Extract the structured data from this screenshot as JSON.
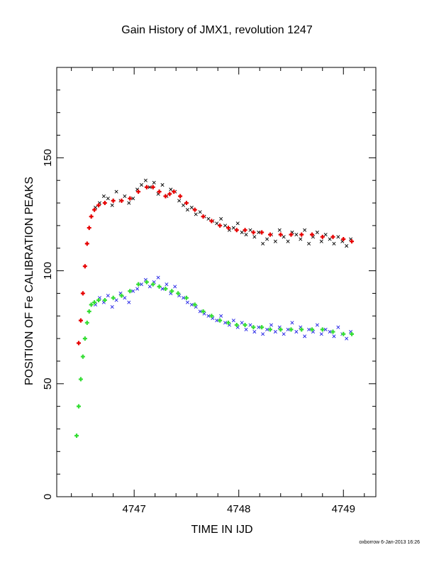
{
  "chart_data": {
    "type": "scatter",
    "title": "Gain History of JMX1, revolution 1247",
    "xlabel": "TIME IN IJD",
    "ylabel": "POSITION OF Fe CALIBRATION PEAKS",
    "xlim": [
      4746.26,
      4749.31
    ],
    "ylim": [
      0,
      190
    ],
    "xticks": [
      4747,
      4748,
      4749
    ],
    "yticks": [
      0,
      50,
      100,
      150
    ],
    "grid": false,
    "series": [
      {
        "color": "#000000",
        "marker": "x",
        "x": [
          4746.63,
          4746.67,
          4746.71,
          4746.75,
          4746.79,
          4746.83,
          4746.87,
          4746.91,
          4746.95,
          4746.99,
          4747.03,
          4747.07,
          4747.11,
          4747.15,
          4747.19,
          4747.23,
          4747.27,
          4747.31,
          4747.35,
          4747.39,
          4747.43,
          4747.47,
          4747.51,
          4747.55,
          4747.59,
          4747.63,
          4747.67,
          4747.71,
          4747.75,
          4747.79,
          4747.83,
          4747.87,
          4747.91,
          4747.95,
          4747.99,
          4748.03,
          4748.07,
          4748.11,
          4748.15,
          4748.19,
          4748.23,
          4748.27,
          4748.31,
          4748.35,
          4748.39,
          4748.43,
          4748.47,
          4748.51,
          4748.55,
          4748.59,
          4748.63,
          4748.67,
          4748.71,
          4748.75,
          4748.79,
          4748.83,
          4748.87,
          4748.91,
          4748.95,
          4748.99,
          4749.03,
          4749.07
        ],
        "y": [
          128,
          130,
          133,
          132,
          129,
          135,
          131,
          133,
          130,
          132,
          136,
          138,
          140,
          137,
          139,
          134,
          138,
          133,
          136,
          135,
          131,
          129,
          127,
          128,
          125,
          126,
          124,
          123,
          122,
          121,
          123,
          120,
          118,
          119,
          121,
          117,
          116,
          118,
          115,
          117,
          112,
          114,
          116,
          113,
          118,
          115,
          113,
          117,
          116,
          114,
          118,
          112,
          115,
          117,
          113,
          116,
          114,
          112,
          115,
          113,
          111,
          114
        ]
      },
      {
        "color": "#1f1fe6",
        "marker": "x",
        "x": [
          4746.63,
          4746.67,
          4746.71,
          4746.75,
          4746.79,
          4746.83,
          4746.87,
          4746.91,
          4746.95,
          4746.99,
          4747.03,
          4747.07,
          4747.11,
          4747.15,
          4747.19,
          4747.23,
          4747.27,
          4747.31,
          4747.35,
          4747.39,
          4747.43,
          4747.47,
          4747.51,
          4747.55,
          4747.59,
          4747.63,
          4747.67,
          4747.71,
          4747.75,
          4747.79,
          4747.83,
          4747.87,
          4747.91,
          4747.95,
          4747.99,
          4748.03,
          4748.07,
          4748.11,
          4748.15,
          4748.19,
          4748.23,
          4748.27,
          4748.31,
          4748.35,
          4748.39,
          4748.43,
          4748.47,
          4748.51,
          4748.55,
          4748.59,
          4748.63,
          4748.67,
          4748.71,
          4748.75,
          4748.79,
          4748.83,
          4748.87,
          4748.91,
          4748.95,
          4748.99,
          4749.03,
          4749.07
        ],
        "y": [
          85,
          88,
          86,
          89,
          84,
          87,
          90,
          88,
          86,
          91,
          92,
          94,
          96,
          93,
          95,
          97,
          92,
          94,
          90,
          93,
          89,
          88,
          86,
          85,
          84,
          82,
          81,
          80,
          79,
          78,
          80,
          77,
          76,
          78,
          75,
          77,
          74,
          76,
          73,
          75,
          72,
          74,
          76,
          73,
          75,
          72,
          74,
          77,
          73,
          75,
          71,
          74,
          73,
          76,
          72,
          74,
          73,
          71,
          75,
          72,
          70,
          73
        ]
      },
      {
        "color": "#e60000",
        "marker": "+",
        "x": [
          4746.47,
          4746.49,
          4746.51,
          4746.53,
          4746.55,
          4746.57,
          4746.59,
          4746.62,
          4746.66,
          4746.72,
          4746.8,
          4746.88,
          4746.96,
          4747.04,
          4747.12,
          4747.18,
          4747.24,
          4747.3,
          4747.34,
          4747.38,
          4747.44,
          4747.5,
          4747.58,
          4747.66,
          4747.74,
          4747.82,
          4747.9,
          4747.98,
          4748.06,
          4748.14,
          4748.22,
          4748.3,
          4748.4,
          4748.5,
          4748.6,
          4748.7,
          4748.8,
          4748.9,
          4749.0,
          4749.08
        ],
        "y": [
          68,
          78,
          90,
          102,
          112,
          119,
          124,
          127,
          129,
          130,
          131,
          131,
          132,
          135,
          137,
          137,
          135,
          133,
          134,
          135,
          133,
          130,
          127,
          124,
          122,
          120,
          119,
          118,
          118,
          117,
          117,
          116,
          116,
          116,
          116,
          116,
          115,
          115,
          114,
          113
        ]
      },
      {
        "color": "#33dd33",
        "marker": "+",
        "x": [
          4746.45,
          4746.47,
          4746.49,
          4746.51,
          4746.53,
          4746.55,
          4746.57,
          4746.59,
          4746.62,
          4746.66,
          4746.72,
          4746.8,
          4746.88,
          4746.96,
          4747.04,
          4747.12,
          4747.18,
          4747.24,
          4747.3,
          4747.36,
          4747.42,
          4747.5,
          4747.58,
          4747.66,
          4747.74,
          4747.82,
          4747.9,
          4747.98,
          4748.06,
          4748.14,
          4748.22,
          4748.3,
          4748.4,
          4748.5,
          4748.6,
          4748.7,
          4748.8,
          4748.9,
          4749.0,
          4749.08
        ],
        "y": [
          27,
          40,
          52,
          62,
          70,
          77,
          82,
          85,
          86,
          87,
          87,
          88,
          89,
          91,
          94,
          95,
          94,
          93,
          92,
          91,
          90,
          88,
          85,
          82,
          80,
          78,
          77,
          76,
          76,
          75,
          75,
          74,
          74,
          74,
          74,
          74,
          74,
          73,
          72,
          72
        ]
      }
    ]
  },
  "credit": "oxborrow  6-Jan-2013 16:26"
}
